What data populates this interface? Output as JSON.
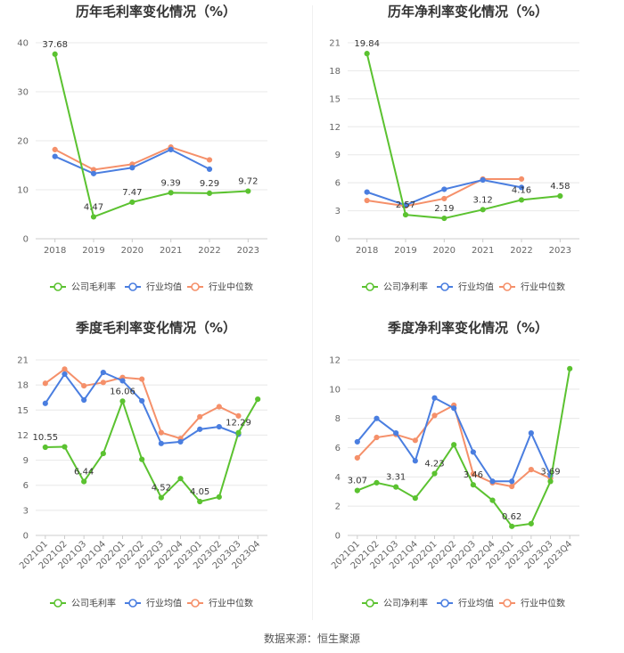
{
  "footer": {
    "source": "数据来源：恒生聚源"
  },
  "colors": {
    "company": "#5bc230",
    "avg": "#4a7ee0",
    "median": "#f5906a",
    "grid": "#e8e8e8",
    "axis": "#cccccc"
  },
  "chart_data": [
    {
      "id": "annual-gross",
      "type": "line",
      "title": "历年毛利率变化情况（%）",
      "x": [
        "2018",
        "2019",
        "2020",
        "2021",
        "2022",
        "2023"
      ],
      "ylim": [
        0,
        40
      ],
      "yticks": [
        0,
        10,
        20,
        30,
        40
      ],
      "series": [
        {
          "name": "公司毛利率",
          "key": "company",
          "values": [
            37.68,
            4.47,
            7.47,
            9.39,
            9.29,
            9.72
          ]
        },
        {
          "name": "行业均值",
          "key": "avg",
          "values": [
            16.8,
            13.3,
            14.5,
            18.2,
            14.2,
            null
          ]
        },
        {
          "name": "行业中位数",
          "key": "median",
          "values": [
            18.2,
            14.1,
            15.2,
            18.7,
            16.1,
            null
          ]
        }
      ],
      "labels": [
        {
          "i": 0,
          "text": "37.68",
          "pos": "above"
        },
        {
          "i": 1,
          "text": "4.47",
          "pos": "above"
        },
        {
          "i": 2,
          "text": "7.47",
          "pos": "above"
        },
        {
          "i": 3,
          "text": "9.39",
          "pos": "above"
        },
        {
          "i": 4,
          "text": "9.29",
          "pos": "above"
        },
        {
          "i": 5,
          "text": "9.72",
          "pos": "above"
        }
      ]
    },
    {
      "id": "annual-net",
      "type": "line",
      "title": "历年净利率变化情况（%）",
      "x": [
        "2018",
        "2019",
        "2020",
        "2021",
        "2022",
        "2023"
      ],
      "ylim": [
        0,
        21
      ],
      "yticks": [
        0,
        3,
        6,
        9,
        12,
        15,
        18,
        21
      ],
      "series": [
        {
          "name": "公司净利率",
          "key": "company",
          "values": [
            19.84,
            2.57,
            2.19,
            3.12,
            4.16,
            4.58
          ]
        },
        {
          "name": "行业均值",
          "key": "avg",
          "values": [
            5.0,
            3.6,
            5.3,
            6.3,
            5.5,
            null
          ]
        },
        {
          "name": "行业中位数",
          "key": "median",
          "values": [
            4.1,
            3.5,
            4.3,
            6.4,
            6.4,
            null
          ]
        }
      ],
      "labels": [
        {
          "i": 0,
          "text": "19.84",
          "pos": "above"
        },
        {
          "i": 1,
          "text": "2.57",
          "pos": "above"
        },
        {
          "i": 2,
          "text": "2.19",
          "pos": "above"
        },
        {
          "i": 3,
          "text": "3.12",
          "pos": "above"
        },
        {
          "i": 4,
          "text": "4.16",
          "pos": "above"
        },
        {
          "i": 5,
          "text": "4.58",
          "pos": "above"
        }
      ]
    },
    {
      "id": "quarterly-gross",
      "type": "line",
      "title": "季度毛利率变化情况（%）",
      "x": [
        "2021Q1",
        "2021Q2",
        "2021Q3",
        "2021Q4",
        "2022Q1",
        "2022Q2",
        "2022Q3",
        "2022Q4",
        "2023Q1",
        "2023Q2",
        "2023Q3",
        "2023Q4"
      ],
      "ylim": [
        0,
        21
      ],
      "yticks": [
        0,
        3,
        6,
        9,
        12,
        15,
        18,
        21
      ],
      "series": [
        {
          "name": "公司毛利率",
          "key": "company",
          "values": [
            10.55,
            10.6,
            6.44,
            9.8,
            16.06,
            9.1,
            4.52,
            6.8,
            4.05,
            4.6,
            12.29,
            16.3
          ]
        },
        {
          "name": "行业均值",
          "key": "avg",
          "values": [
            15.8,
            19.3,
            16.2,
            19.5,
            18.5,
            16.1,
            11.0,
            11.2,
            12.7,
            13.0,
            12.1,
            null
          ]
        },
        {
          "name": "行业中位数",
          "key": "median",
          "values": [
            18.2,
            19.9,
            17.9,
            18.3,
            18.9,
            18.7,
            12.3,
            11.6,
            14.2,
            15.4,
            14.3,
            null
          ]
        }
      ],
      "labels": [
        {
          "i": 0,
          "text": "10.55",
          "pos": "above"
        },
        {
          "i": 2,
          "text": "6.44",
          "pos": "above"
        },
        {
          "i": 4,
          "text": "16.06",
          "pos": "above"
        },
        {
          "i": 6,
          "text": "4.52",
          "pos": "above"
        },
        {
          "i": 8,
          "text": "4.05",
          "pos": "above"
        },
        {
          "i": 10,
          "text": "12.29",
          "pos": "above"
        }
      ]
    },
    {
      "id": "quarterly-net",
      "type": "line",
      "title": "季度净利率变化情况（%）",
      "x": [
        "2021Q1",
        "2021Q2",
        "2021Q3",
        "2021Q4",
        "2022Q1",
        "2022Q2",
        "2022Q3",
        "2022Q4",
        "2023Q1",
        "2023Q2",
        "2023Q3",
        "2023Q4"
      ],
      "ylim": [
        0,
        12
      ],
      "yticks": [
        0,
        2,
        4,
        6,
        8,
        10,
        12
      ],
      "series": [
        {
          "name": "公司净利率",
          "key": "company",
          "values": [
            3.07,
            3.6,
            3.31,
            2.55,
            4.23,
            6.2,
            3.46,
            2.4,
            0.62,
            0.8,
            3.69,
            11.4
          ]
        },
        {
          "name": "行业均值",
          "key": "avg",
          "values": [
            6.4,
            8.0,
            7.0,
            5.1,
            9.4,
            8.7,
            5.7,
            3.7,
            3.7,
            7.0,
            4.1,
            null
          ]
        },
        {
          "name": "行业中位数",
          "key": "median",
          "values": [
            5.3,
            6.7,
            6.9,
            6.5,
            8.2,
            8.9,
            4.2,
            3.6,
            3.35,
            4.5,
            3.9,
            null
          ]
        }
      ],
      "labels": [
        {
          "i": 0,
          "text": "3.07",
          "pos": "above"
        },
        {
          "i": 2,
          "text": "3.31",
          "pos": "above"
        },
        {
          "i": 4,
          "text": "4.23",
          "pos": "above"
        },
        {
          "i": 6,
          "text": "3.46",
          "pos": "above"
        },
        {
          "i": 8,
          "text": "0.62",
          "pos": "above"
        },
        {
          "i": 10,
          "text": "3.69",
          "pos": "above"
        }
      ]
    }
  ]
}
